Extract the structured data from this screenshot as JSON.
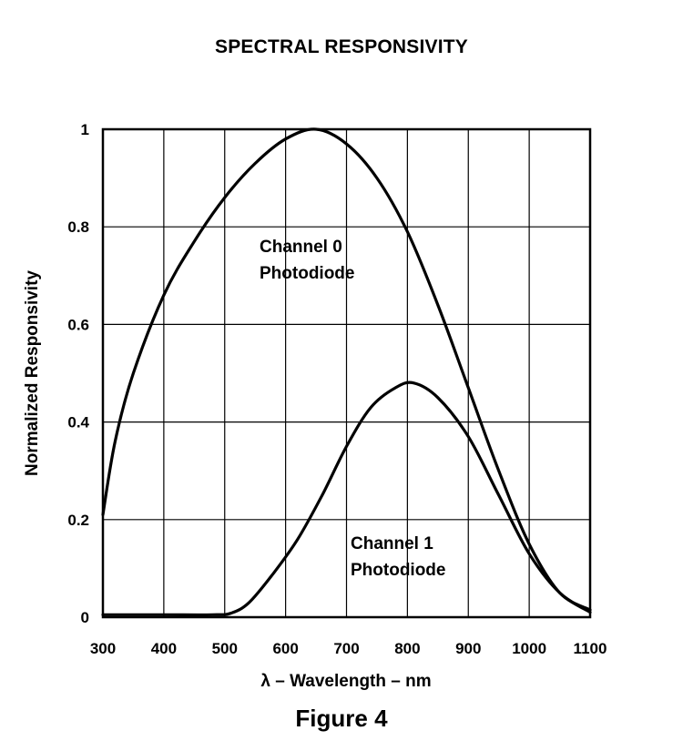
{
  "chart_data": {
    "type": "line",
    "title": "SPECTRAL RESPONSIVITY",
    "caption": "Figure 4",
    "xlabel": "λ – Wavelength – nm",
    "ylabel": "Normalized Responsivity",
    "xlim": [
      300,
      1100
    ],
    "ylim": [
      0,
      1
    ],
    "xticks": [
      "300",
      "400",
      "500",
      "600",
      "700",
      "800",
      "900",
      "1000",
      "1100"
    ],
    "yticks": [
      "0",
      "0.2",
      "0.4",
      "0.6",
      "0.8",
      "1"
    ],
    "grid": true,
    "series": [
      {
        "name": "Channel 0 Photodiode",
        "x": [
          300,
          320,
          350,
          400,
          450,
          500,
          550,
          600,
          650,
          700,
          750,
          800,
          850,
          900,
          950,
          1000,
          1050,
          1100
        ],
        "y": [
          0.21,
          0.36,
          0.5,
          0.66,
          0.77,
          0.86,
          0.93,
          0.98,
          1.0,
          0.97,
          0.9,
          0.79,
          0.64,
          0.47,
          0.3,
          0.15,
          0.05,
          0.015
        ]
      },
      {
        "name": "Channel 1 Photodiode",
        "x": [
          300,
          400,
          480,
          510,
          540,
          580,
          620,
          660,
          700,
          740,
          780,
          810,
          850,
          900,
          950,
          1000,
          1050,
          1100
        ],
        "y": [
          0.005,
          0.005,
          0.005,
          0.008,
          0.03,
          0.09,
          0.16,
          0.25,
          0.35,
          0.43,
          0.47,
          0.48,
          0.45,
          0.37,
          0.25,
          0.13,
          0.05,
          0.01
        ]
      }
    ]
  }
}
